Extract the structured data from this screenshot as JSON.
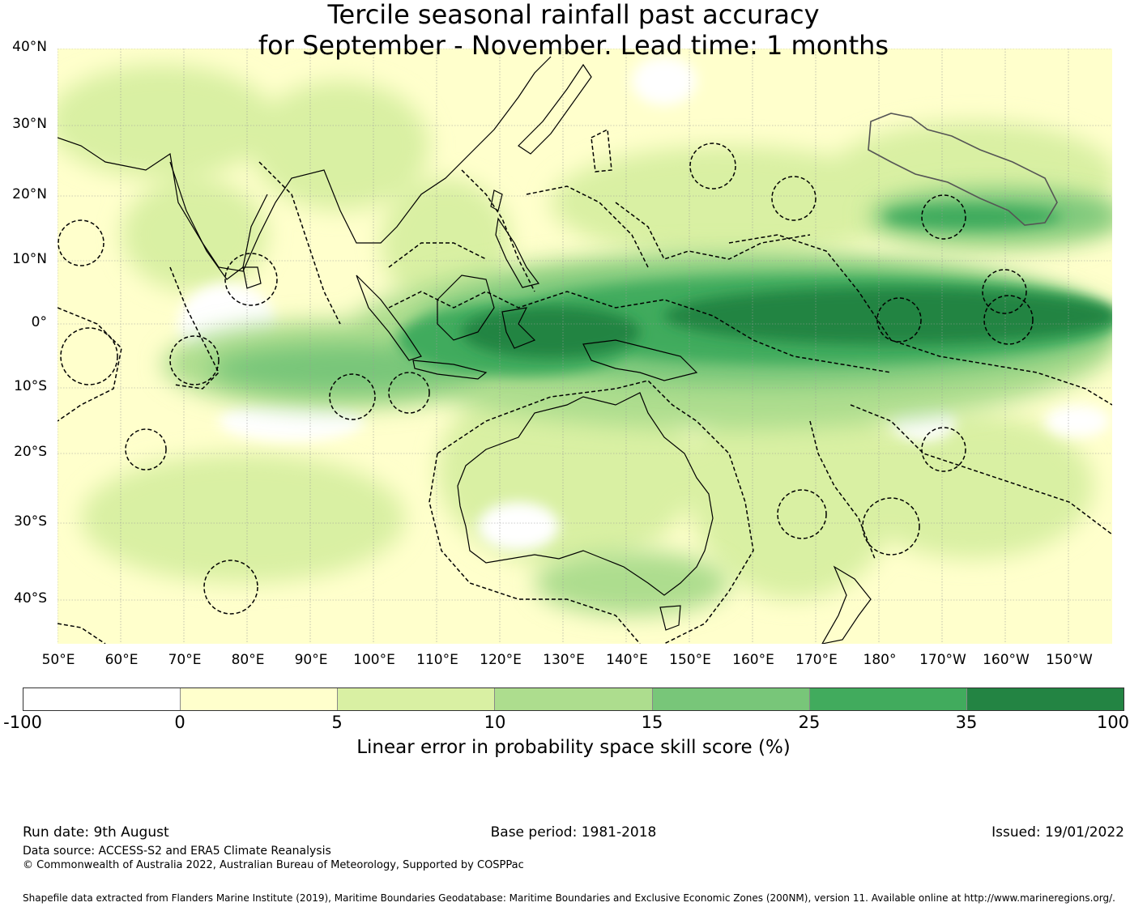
{
  "title_line1": "Tercile seasonal rainfall past accuracy",
  "title_line2": "for September - November. Lead time: 1 months",
  "lat_labels": [
    "40°N",
    "30°N",
    "20°N",
    "10°N",
    "0°",
    "10°S",
    "20°S",
    "30°S",
    "40°S"
  ],
  "lon_labels": [
    "50°E",
    "60°E",
    "70°E",
    "80°E",
    "90°E",
    "100°E",
    "110°E",
    "120°E",
    "130°E",
    "140°E",
    "150°E",
    "160°E",
    "170°E",
    "180°",
    "170°W",
    "160°W",
    "150°W"
  ],
  "colorbar": {
    "ticks": [
      "-100",
      "0",
      "5",
      "10",
      "15",
      "25",
      "35",
      "100"
    ],
    "colors": [
      "#ffffff",
      "#ffffcc",
      "#d9f0a3",
      "#addd8e",
      "#78c679",
      "#41ab5d",
      "#238443"
    ],
    "label": "Linear error in probability space skill score (%)"
  },
  "footer": {
    "run_date": "Run date: 9th August",
    "base_period": "Base period: 1981-2018",
    "issued": "Issued: 19/01/2022",
    "data_source": "Data source: ACCESS-S2 and ERA5 Climate Reanalysis",
    "copyright": "© Commonwealth of Australia 2022, Australian Bureau of Meteorology, Supported by COSPPac",
    "shapefile": "Shapefile data extracted from Flanders Marine Institute (2019), Maritime Boundaries Geodatabase: Maritime Boundaries and Exclusive Economic Zones (200NM), version 11. Available online at http://www.marineregions.org/."
  }
}
